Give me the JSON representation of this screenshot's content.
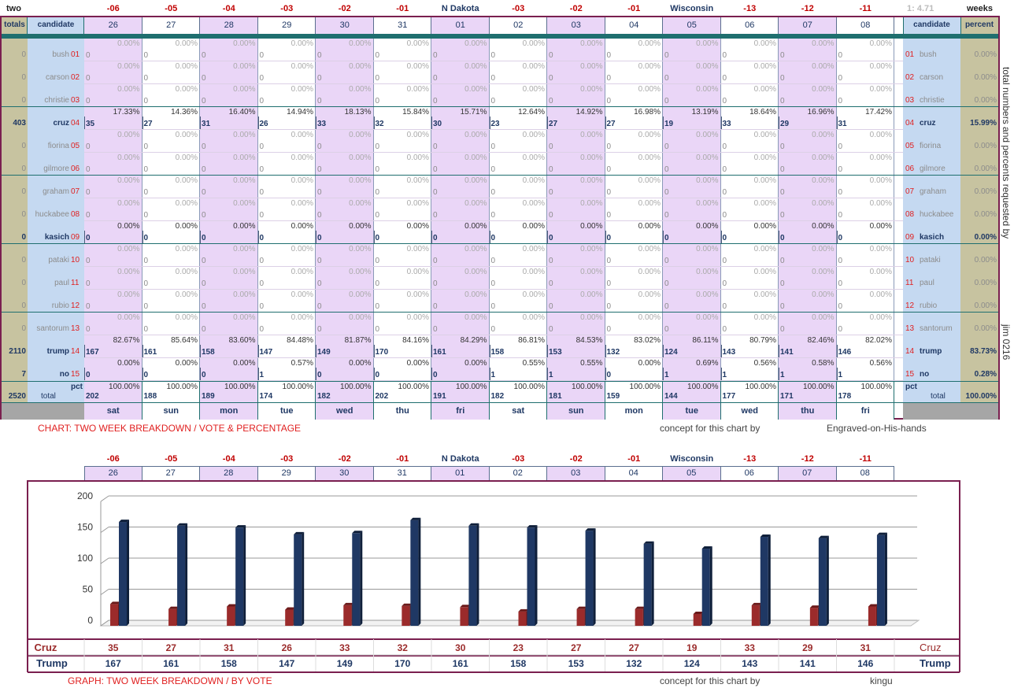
{
  "top": {
    "corner_left": "two",
    "corner_right": "weeks",
    "ratio": "1: 4.71",
    "day_offsets": [
      "-06",
      "-05",
      "-04",
      "-03",
      "-02",
      "-01",
      "N Dakota",
      "-03",
      "-02",
      "-01",
      "Wisconsin",
      "-13",
      "-12",
      "-11"
    ],
    "dates": [
      "26",
      "27",
      "28",
      "29",
      "30",
      "31",
      "01",
      "02",
      "03",
      "04",
      "05",
      "06",
      "07",
      "08"
    ],
    "weekdays": [
      "sat",
      "sun",
      "mon",
      "tue",
      "wed",
      "thu",
      "fri",
      "sat",
      "sun",
      "mon",
      "tue",
      "wed",
      "thu",
      "fri"
    ],
    "headers": {
      "totals": "totals",
      "candidate": "candidate",
      "candidate_right": "candidate",
      "percent": "percent"
    }
  },
  "candidates": [
    {
      "name": "bush",
      "num": "01",
      "total": "0",
      "pct": "0.00%",
      "bold": false
    },
    {
      "name": "carson",
      "num": "02",
      "total": "0",
      "pct": "0.00%",
      "bold": false
    },
    {
      "name": "christie",
      "num": "03",
      "total": "0",
      "pct": "0.00%",
      "bold": false
    },
    {
      "name": "cruz",
      "num": "04",
      "total": "403",
      "pct": "15.99%",
      "bold": true
    },
    {
      "name": "fiorina",
      "num": "05",
      "total": "0",
      "pct": "0.00%",
      "bold": false
    },
    {
      "name": "gilmore",
      "num": "06",
      "total": "0",
      "pct": "0.00%",
      "bold": false
    },
    {
      "name": "graham",
      "num": "07",
      "total": "0",
      "pct": "0.00%",
      "bold": false
    },
    {
      "name": "huckabee",
      "num": "08",
      "total": "0",
      "pct": "0.00%",
      "bold": false
    },
    {
      "name": "kasich",
      "num": "09",
      "total": "0",
      "pct": "0.00%",
      "bold": true
    },
    {
      "name": "pataki",
      "num": "10",
      "total": "0",
      "pct": "0.00%",
      "bold": false
    },
    {
      "name": "paul",
      "num": "11",
      "total": "0",
      "pct": "0.00%",
      "bold": false
    },
    {
      "name": "rubio",
      "num": "12",
      "total": "0",
      "pct": "0.00%",
      "bold": false
    },
    {
      "name": "santorum",
      "num": "13",
      "total": "0",
      "pct": "0.00%",
      "bold": false
    },
    {
      "name": "trump",
      "num": "14",
      "total": "2110",
      "pct": "83.73%",
      "bold": true
    },
    {
      "name": "no",
      "num": "15",
      "total": "7",
      "pct": "0.28%",
      "bold": true
    }
  ],
  "cell_values": {
    "cruz": {
      "v": [
        "35",
        "27",
        "31",
        "26",
        "33",
        "32",
        "30",
        "23",
        "27",
        "27",
        "19",
        "33",
        "29",
        "31"
      ],
      "p": [
        "17.33%",
        "14.36%",
        "16.40%",
        "14.94%",
        "18.13%",
        "15.84%",
        "15.71%",
        "12.64%",
        "14.92%",
        "16.98%",
        "13.19%",
        "18.64%",
        "16.96%",
        "17.42%"
      ]
    },
    "trump": {
      "v": [
        "167",
        "161",
        "158",
        "147",
        "149",
        "170",
        "161",
        "158",
        "153",
        "132",
        "124",
        "143",
        "141",
        "146"
      ],
      "p": [
        "82.67%",
        "85.64%",
        "83.60%",
        "84.48%",
        "81.87%",
        "84.16%",
        "84.29%",
        "86.81%",
        "84.53%",
        "83.02%",
        "86.11%",
        "80.79%",
        "82.46%",
        "82.02%"
      ]
    },
    "no": {
      "v": [
        "0",
        "0",
        "0",
        "1",
        "0",
        "0",
        "0",
        "1",
        "1",
        "0",
        "1",
        "1",
        "1",
        "1"
      ],
      "p": [
        "0.00%",
        "0.00%",
        "0.00%",
        "0.57%",
        "0.00%",
        "0.00%",
        "0.00%",
        "0.55%",
        "0.55%",
        "0.00%",
        "0.69%",
        "0.56%",
        "0.58%",
        "0.56%"
      ]
    },
    "zero_value": "0",
    "zero_pct": "0.00%"
  },
  "total_row": {
    "pct_label": "pct",
    "label": "total",
    "grand_total": "2520",
    "grand_pct": "100.00%",
    "values": [
      "202",
      "188",
      "189",
      "174",
      "182",
      "202",
      "191",
      "182",
      "181",
      "159",
      "144",
      "177",
      "171",
      "178"
    ],
    "pct": "100.00%"
  },
  "side_text": {
    "requested": "total numbers and percents requested by",
    "author": "jim 0216"
  },
  "captions": {
    "chart_title": "CHART: TWO WEEK BREAKDOWN / VOTE & PERCENTAGE",
    "chart_concept": "concept for this chart by",
    "chart_credit": "Engraved-on-His-hands",
    "graph_title": "GRAPH: TWO WEEK BREAKDOWN / BY VOTE",
    "graph_concept": "concept for this chart by",
    "graph_credit": "kingu"
  },
  "colors": {
    "cruz": "#8b2323",
    "trump": "#1f3864",
    "frame": "#7a1f4f",
    "purple_col": "#ead6f7",
    "side_left": "#c7c3a0",
    "side_cand": "#c5d9f1"
  },
  "chart_data": {
    "type": "bar",
    "categories": [
      "26",
      "27",
      "28",
      "29",
      "30",
      "31",
      "01",
      "02",
      "03",
      "04",
      "05",
      "06",
      "07",
      "08"
    ],
    "series": [
      {
        "name": "Cruz",
        "values": [
          35,
          27,
          31,
          26,
          33,
          32,
          30,
          23,
          27,
          27,
          19,
          33,
          29,
          31
        ]
      },
      {
        "name": "Trump",
        "values": [
          167,
          161,
          158,
          147,
          149,
          170,
          161,
          158,
          153,
          132,
          124,
          143,
          141,
          146
        ]
      }
    ],
    "y_ticks": [
      "0",
      "50",
      "100",
      "150",
      "200"
    ],
    "ylim": [
      0,
      200
    ],
    "grid": true,
    "legend": "bottom-table"
  }
}
